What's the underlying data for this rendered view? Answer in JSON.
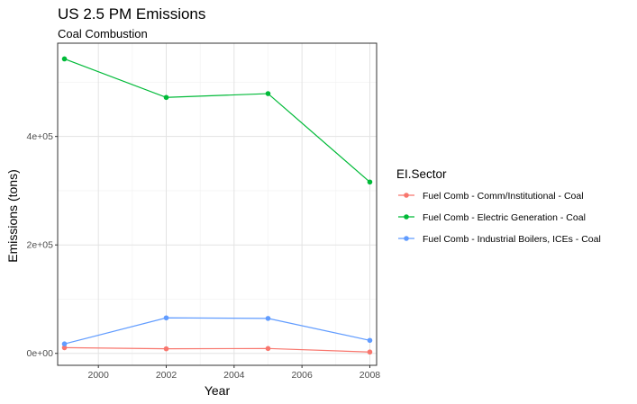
{
  "chart_data": {
    "type": "line",
    "title": "US 2.5 PM Emissions",
    "subtitle": "Coal Combustion",
    "xlabel": "Year",
    "ylabel": "Emissions (tons)",
    "x": [
      1999,
      2002,
      2005,
      2008
    ],
    "xlim": [
      1998.8,
      2008.2
    ],
    "ylim": [
      -22000,
      572000
    ],
    "xticks": [
      2000,
      2002,
      2004,
      2006,
      2008
    ],
    "xtick_labels": [
      "2000",
      "2002",
      "2004",
      "2006",
      "2008"
    ],
    "yticks": [
      0,
      200000,
      400000
    ],
    "ytick_labels": [
      "0e+00",
      "2e+05",
      "4e+05"
    ],
    "grid": true,
    "legend_title": "EI.Sector",
    "legend_position": "right",
    "series": [
      {
        "name": "Fuel Comb - Comm/Institutional - Coal",
        "color": "#F8766D",
        "values": [
          10500,
          8500,
          9000,
          2500
        ]
      },
      {
        "name": "Fuel Comb - Electric Generation - Coal",
        "color": "#00BA38",
        "values": [
          543000,
          472000,
          479000,
          316000
        ]
      },
      {
        "name": "Fuel Comb - Industrial Boilers, ICEs - Coal",
        "color": "#619CFF",
        "values": [
          17500,
          65500,
          64500,
          24000
        ]
      }
    ]
  }
}
